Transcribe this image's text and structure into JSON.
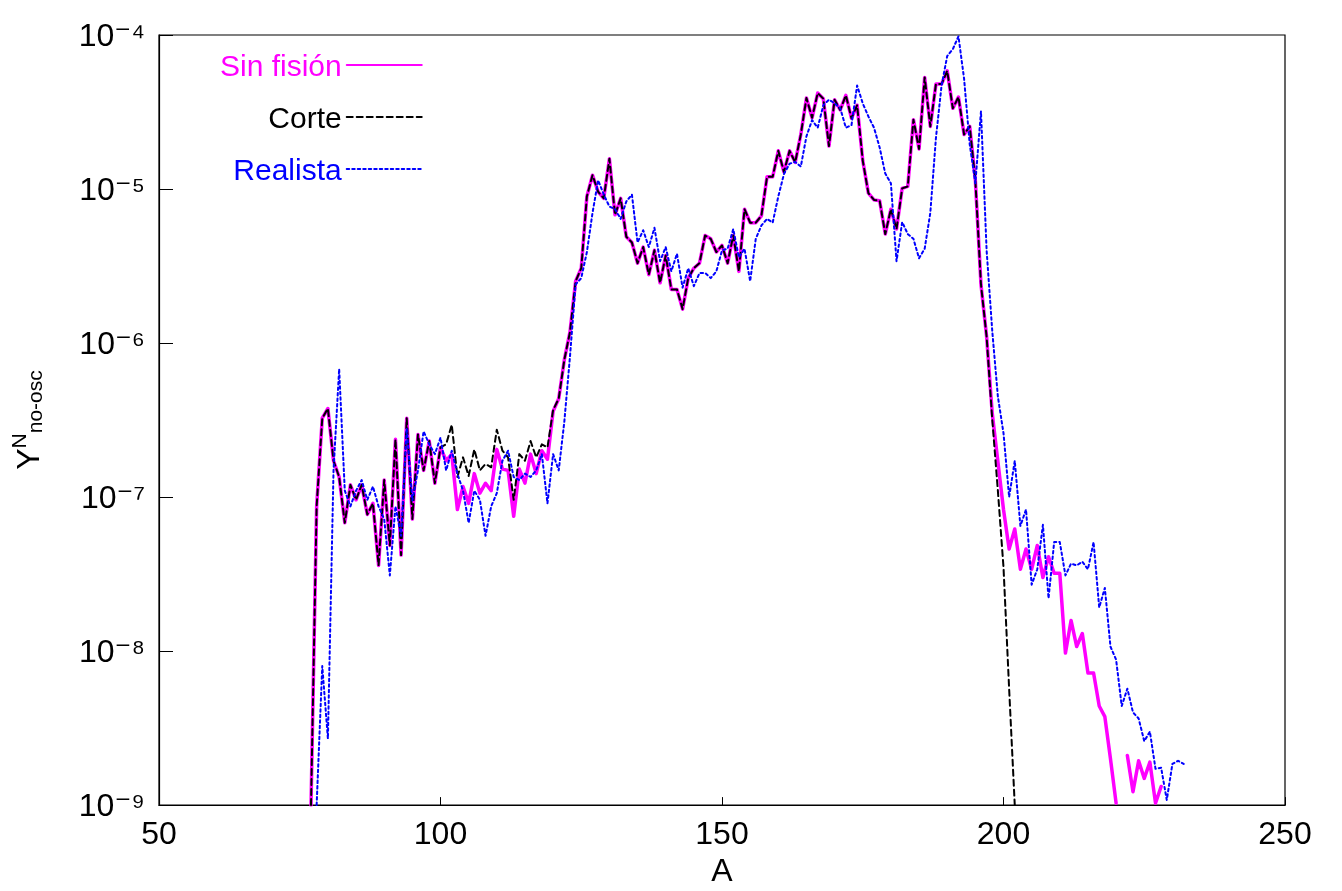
{
  "chart_data": {
    "type": "line",
    "xlabel": "A",
    "ylabel": "Y$^{N}$$_{no-osc}$",
    "log": "y",
    "grid": false,
    "legend": "top left",
    "marker": "none",
    "xlim": [
      50,
      250
    ],
    "xticks": [
      50,
      100,
      150,
      200,
      250
    ],
    "ylim": [
      1e-09,
      0.0001
    ],
    "yticks": [
      {
        "value": 1e-09,
        "label": "10⁻⁹"
      },
      {
        "value": 1e-08,
        "label": "10⁻⁸"
      },
      {
        "value": 1e-07,
        "label": "10⁻⁷"
      },
      {
        "value": 1e-06,
        "label": "10⁻⁶"
      },
      {
        "value": 1e-05,
        "label": "10⁻⁵"
      },
      {
        "value": 0.0001,
        "label": "10⁻⁴"
      }
    ],
    "x": [
      77,
      78,
      79,
      80,
      81,
      82,
      83,
      84,
      85,
      86,
      87,
      88,
      89,
      90,
      91,
      92,
      93,
      94,
      95,
      96,
      97,
      98,
      99,
      100,
      101,
      102,
      103,
      104,
      105,
      106,
      107,
      108,
      109,
      110,
      111,
      112,
      113,
      114,
      115,
      116,
      117,
      118,
      119,
      120,
      121,
      122,
      123,
      124,
      125,
      126,
      127,
      128,
      129,
      130,
      131,
      132,
      133,
      134,
      135,
      136,
      137,
      138,
      139,
      140,
      141,
      142,
      143,
      144,
      145,
      146,
      147,
      148,
      149,
      150,
      151,
      152,
      153,
      154,
      155,
      156,
      157,
      158,
      159,
      160,
      161,
      162,
      163,
      164,
      165,
      166,
      167,
      168,
      169,
      170,
      171,
      172,
      173,
      174,
      175,
      176,
      177,
      178,
      179,
      180,
      181,
      182,
      183,
      184,
      185,
      186,
      187,
      188,
      189,
      190,
      191,
      192,
      193,
      194,
      195,
      196,
      197,
      198,
      199,
      200,
      201,
      202,
      203,
      204,
      205,
      206,
      207,
      208,
      209,
      210,
      211,
      212,
      213,
      214,
      215,
      216,
      217,
      218,
      219,
      220,
      221,
      222,
      223,
      224,
      225,
      226,
      227,
      228,
      229,
      230,
      231,
      232
    ],
    "series": [
      {
        "name": "Sin fisión",
        "color": "#ff00ff",
        "line_style": "solid",
        "values": [
          1e-09,
          8.7e-08,
          3.25e-07,
          3.76e-07,
          1.72e-07,
          1.35e-07,
          6.8e-08,
          1.2e-07,
          9.6e-08,
          1.2e-07,
          7.7e-08,
          9.1e-08,
          3.6e-08,
          1.29e-07,
          4.85e-08,
          2.37e-07,
          4.2e-08,
          3.25e-07,
          7.2e-08,
          2.55e-07,
          1.49e-07,
          2.31e-07,
          1.23e-07,
          2.1e-07,
          1.72e-07,
          1.9e-07,
          8.3e-08,
          1.17e-07,
          9.1e-08,
          1.42e-07,
          1.06e-07,
          1.23e-07,
          1.1e-07,
          2.04e-07,
          1.52e-07,
          1.49e-07,
          7.5e-08,
          1.52e-07,
          1.23e-07,
          1.9e-07,
          1.42e-07,
          2e-07,
          1.76e-07,
          3.6e-07,
          4.36e-07,
          7.8e-07,
          1.18e-06,
          2.52e-06,
          3.06e-06,
          8.95e-06,
          1.23e-05,
          9.6e-06,
          8.7e-06,
          1.57e-05,
          6.8e-06,
          8.7e-06,
          4.9e-06,
          4.5e-06,
          3.3e-06,
          4.2e-06,
          2.78e-06,
          4e-06,
          2.46e-06,
          3.7e-06,
          2.23e-06,
          2.23e-06,
          1.66e-06,
          2.64e-06,
          3.06e-06,
          3.3e-06,
          4.99e-06,
          4.75e-06,
          3.9e-06,
          4.3e-06,
          3.3e-06,
          5e-06,
          2.92e-06,
          7.4e-06,
          6.05e-06,
          6.05e-06,
          6.7e-06,
          1.2e-05,
          1.2e-05,
          1.77e-05,
          1.29e-05,
          1.77e-05,
          1.49e-05,
          2.26e-05,
          3.9e-05,
          2.9e-05,
          4.2e-05,
          3.86e-05,
          1.9e-05,
          3.8e-05,
          3.26e-05,
          4.06e-05,
          2.88e-05,
          3.5e-05,
          1.53e-05,
          9.4e-06,
          8.5e-06,
          8.4e-06,
          5.1e-06,
          7.4e-06,
          5.5e-06,
          1.01e-05,
          1.04e-05,
          2.82e-05,
          1.82e-05,
          5.3e-05,
          2.55e-05,
          4.8e-05,
          4.8e-05,
          5.85e-05,
          3.34e-05,
          3.96e-05,
          2.26e-05,
          2.55e-05,
          1.14e-05,
          2.4e-06,
          1.1e-06,
          3.5e-07,
          1.7e-07,
          8.3e-08,
          4.6e-08,
          6.2e-08,
          3.4e-08,
          4.6e-08,
          3.4e-08,
          4.85e-08,
          3e-08,
          4.1e-08,
          3.2e-08,
          3.2e-08,
          9.7e-09,
          1.58e-08,
          1.07e-08,
          1.3e-08,
          7.2e-09,
          7.2e-09,
          4.4e-09,
          3.75e-09,
          2e-09,
          1.03e-09,
          null,
          2.1e-09,
          1.22e-09,
          1.94e-09,
          1.49e-09,
          1.9e-09,
          1.03e-09,
          1.32e-09,
          null,
          null,
          null,
          null
        ]
      },
      {
        "name": "Corte",
        "color": "#000000",
        "line_style": "dashed",
        "values": [
          1e-09,
          8.7e-08,
          3.25e-07,
          3.76e-07,
          1.72e-07,
          1.35e-07,
          6.8e-08,
          1.2e-07,
          9.6e-08,
          1.2e-07,
          7.7e-08,
          9.1e-08,
          3.6e-08,
          1.29e-07,
          4.85e-08,
          2.37e-07,
          4.2e-08,
          3.25e-07,
          7.2e-08,
          2.55e-07,
          1.49e-07,
          2.31e-07,
          1.23e-07,
          2.1e-07,
          2.2e-07,
          2.95e-07,
          1.35e-07,
          1.81e-07,
          1.37e-07,
          2.04e-07,
          1.49e-07,
          1.64e-07,
          1.56e-07,
          2.74e-07,
          2e-07,
          1.81e-07,
          9.6e-08,
          1.9e-07,
          1.72e-07,
          2.31e-07,
          1.81e-07,
          2.2e-07,
          2.1e-07,
          3.67e-07,
          4.36e-07,
          7.8e-07,
          1.18e-06,
          2.52e-06,
          3.06e-06,
          8.95e-06,
          1.23e-05,
          9.6e-06,
          8.7e-06,
          1.57e-05,
          6.8e-06,
          8.7e-06,
          4.9e-06,
          4.5e-06,
          3.3e-06,
          4.2e-06,
          2.78e-06,
          4e-06,
          2.46e-06,
          3.7e-06,
          2.23e-06,
          2.23e-06,
          1.66e-06,
          2.64e-06,
          3.06e-06,
          3.3e-06,
          4.99e-06,
          4.75e-06,
          3.9e-06,
          4.3e-06,
          3.3e-06,
          5e-06,
          2.92e-06,
          7.4e-06,
          6.05e-06,
          6.05e-06,
          6.7e-06,
          1.2e-05,
          1.2e-05,
          1.77e-05,
          1.29e-05,
          1.77e-05,
          1.49e-05,
          2.26e-05,
          3.9e-05,
          2.9e-05,
          4.2e-05,
          3.86e-05,
          1.9e-05,
          3.8e-05,
          3.26e-05,
          4.06e-05,
          2.88e-05,
          3.5e-05,
          1.53e-05,
          9.4e-06,
          8.5e-06,
          8.4e-06,
          5.1e-06,
          7.4e-06,
          5.5e-06,
          1.01e-05,
          1.04e-05,
          2.82e-05,
          1.82e-05,
          5.3e-05,
          2.55e-05,
          4.8e-05,
          4.8e-05,
          5.85e-05,
          3.34e-05,
          3.96e-05,
          2.26e-05,
          2.55e-05,
          1.14e-05,
          2.4e-06,
          1.1e-06,
          3.2e-07,
          1.1e-07,
          3.5e-08,
          5.7e-09,
          1e-09,
          null,
          null,
          null,
          null,
          null,
          null,
          null,
          null,
          null,
          null,
          null,
          null,
          null,
          null,
          null,
          null,
          null,
          null,
          null,
          null,
          null,
          null,
          null,
          null,
          null,
          null,
          null,
          null,
          null,
          null
        ]
      },
      {
        "name": "Realista",
        "color": "#0000ff",
        "line_style": "dotted",
        "values": [
          null,
          1e-09,
          8e-09,
          2.7e-09,
          1.49e-07,
          6.8e-07,
          1.1e-07,
          8.7e-08,
          1.1e-07,
          1.29e-07,
          9.6e-08,
          1.17e-07,
          8.7e-08,
          7.2e-08,
          3.1e-08,
          8.7e-08,
          5.6e-08,
          2.8e-07,
          9.5e-08,
          1.49e-07,
          2.67e-07,
          2.2e-07,
          1.9e-07,
          2.43e-07,
          1.49e-07,
          2e-07,
          1.42e-07,
          1.1e-07,
          6.8e-08,
          1.1e-07,
          9.6e-08,
          5.6e-08,
          8.7e-08,
          1.06e-07,
          1.72e-07,
          2e-07,
          1.35e-07,
          1.29e-07,
          1.42e-07,
          1.35e-07,
          1.49e-07,
          1.9e-07,
          9.1e-08,
          1.9e-07,
          1.49e-07,
          3.1e-07,
          8.2e-07,
          2.4e-06,
          2.64e-06,
          3.9e-06,
          7e-06,
          1.14e-05,
          9.2e-06,
          7.7e-06,
          7.4e-06,
          6.4e-06,
          8.3e-06,
          9.2e-06,
          4.5e-06,
          5.4e-06,
          4.2e-06,
          5.6e-06,
          3.4e-06,
          4.2e-06,
          2.92e-06,
          3.8e-06,
          2.29e-06,
          3.06e-06,
          2.34e-06,
          2.85e-06,
          2.85e-06,
          2.64e-06,
          2.92e-06,
          4e-06,
          4.1e-06,
          5.5e-06,
          3.6e-06,
          4.1e-06,
          2.52e-06,
          4.75e-06,
          5.8e-06,
          6.4e-06,
          6.05e-06,
          8.95e-06,
          1.25e-05,
          1.46e-05,
          1.5e-05,
          1.4e-05,
          2.2e-05,
          2.8e-05,
          2.5e-05,
          3.5e-05,
          3.8e-05,
          3.6e-05,
          3.35e-05,
          2.5e-05,
          2.6e-05,
          4.7e-05,
          3.6e-05,
          2.96e-05,
          2.5e-05,
          1.86e-05,
          1.26e-05,
          1.09e-05,
          3.4e-06,
          6.1e-06,
          5.1e-06,
          4.75e-06,
          3.55e-06,
          4.1e-06,
          7e-06,
          2.15e-05,
          4.7e-05,
          7.3e-05,
          8.1e-05,
          9.8e-05,
          5.2e-05,
          1.95e-05,
          1.09e-05,
          3.2e-05,
          4e-06,
          1.2e-06,
          4.5e-07,
          2.6e-07,
          1e-07,
          1.72e-07,
          6.5e-08,
          8.3e-08,
          2.7e-08,
          3.4e-08,
          6.6e-08,
          2.2e-08,
          5.1e-08,
          5.1e-08,
          3.1e-08,
          3.7e-08,
          3.6e-08,
          3.8e-08,
          3.4e-08,
          5.1e-08,
          1.92e-08,
          2.57e-08,
          1.07e-08,
          8.8e-09,
          4.4e-09,
          5.7e-09,
          4e-09,
          3.65e-09,
          2.6e-09,
          3e-09,
          1.72e-09,
          1.75e-09,
          1.08e-09,
          1.85e-09,
          1.94e-09,
          1.85e-09
        ]
      }
    ]
  }
}
